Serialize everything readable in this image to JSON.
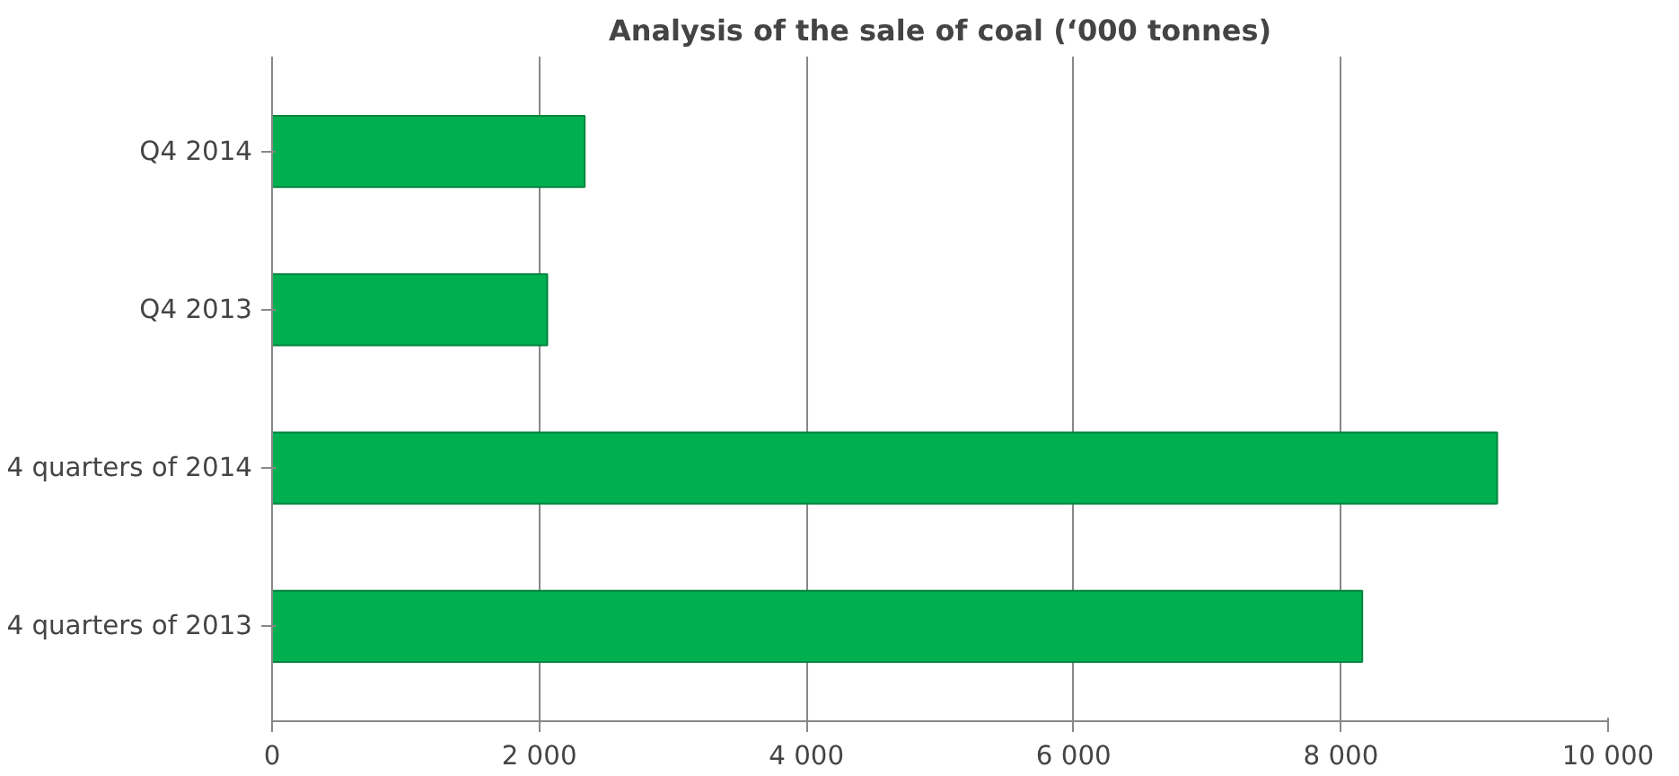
{
  "chart_data": {
    "type": "bar",
    "orientation": "horizontal",
    "title": "Analysis of the sale of coal (‘000 tonnes)",
    "categories": [
      "Q4 2014",
      "Q4 2013",
      "4 quarters of 2014",
      "4 quarters of 2013"
    ],
    "values": [
      2340,
      2060,
      9170,
      8160
    ],
    "color": "#00b050",
    "xlim": [
      0,
      10000
    ],
    "xticks": [
      0,
      {
        "value": 2000,
        "label": "2 000"
      },
      {
        "value": 4000,
        "label": "4 000"
      },
      {
        "value": 6000,
        "label": "6 000"
      },
      {
        "value": 8000,
        "label": "8 000"
      },
      {
        "value": 10000,
        "label": "10 000"
      }
    ],
    "grid": "x"
  }
}
